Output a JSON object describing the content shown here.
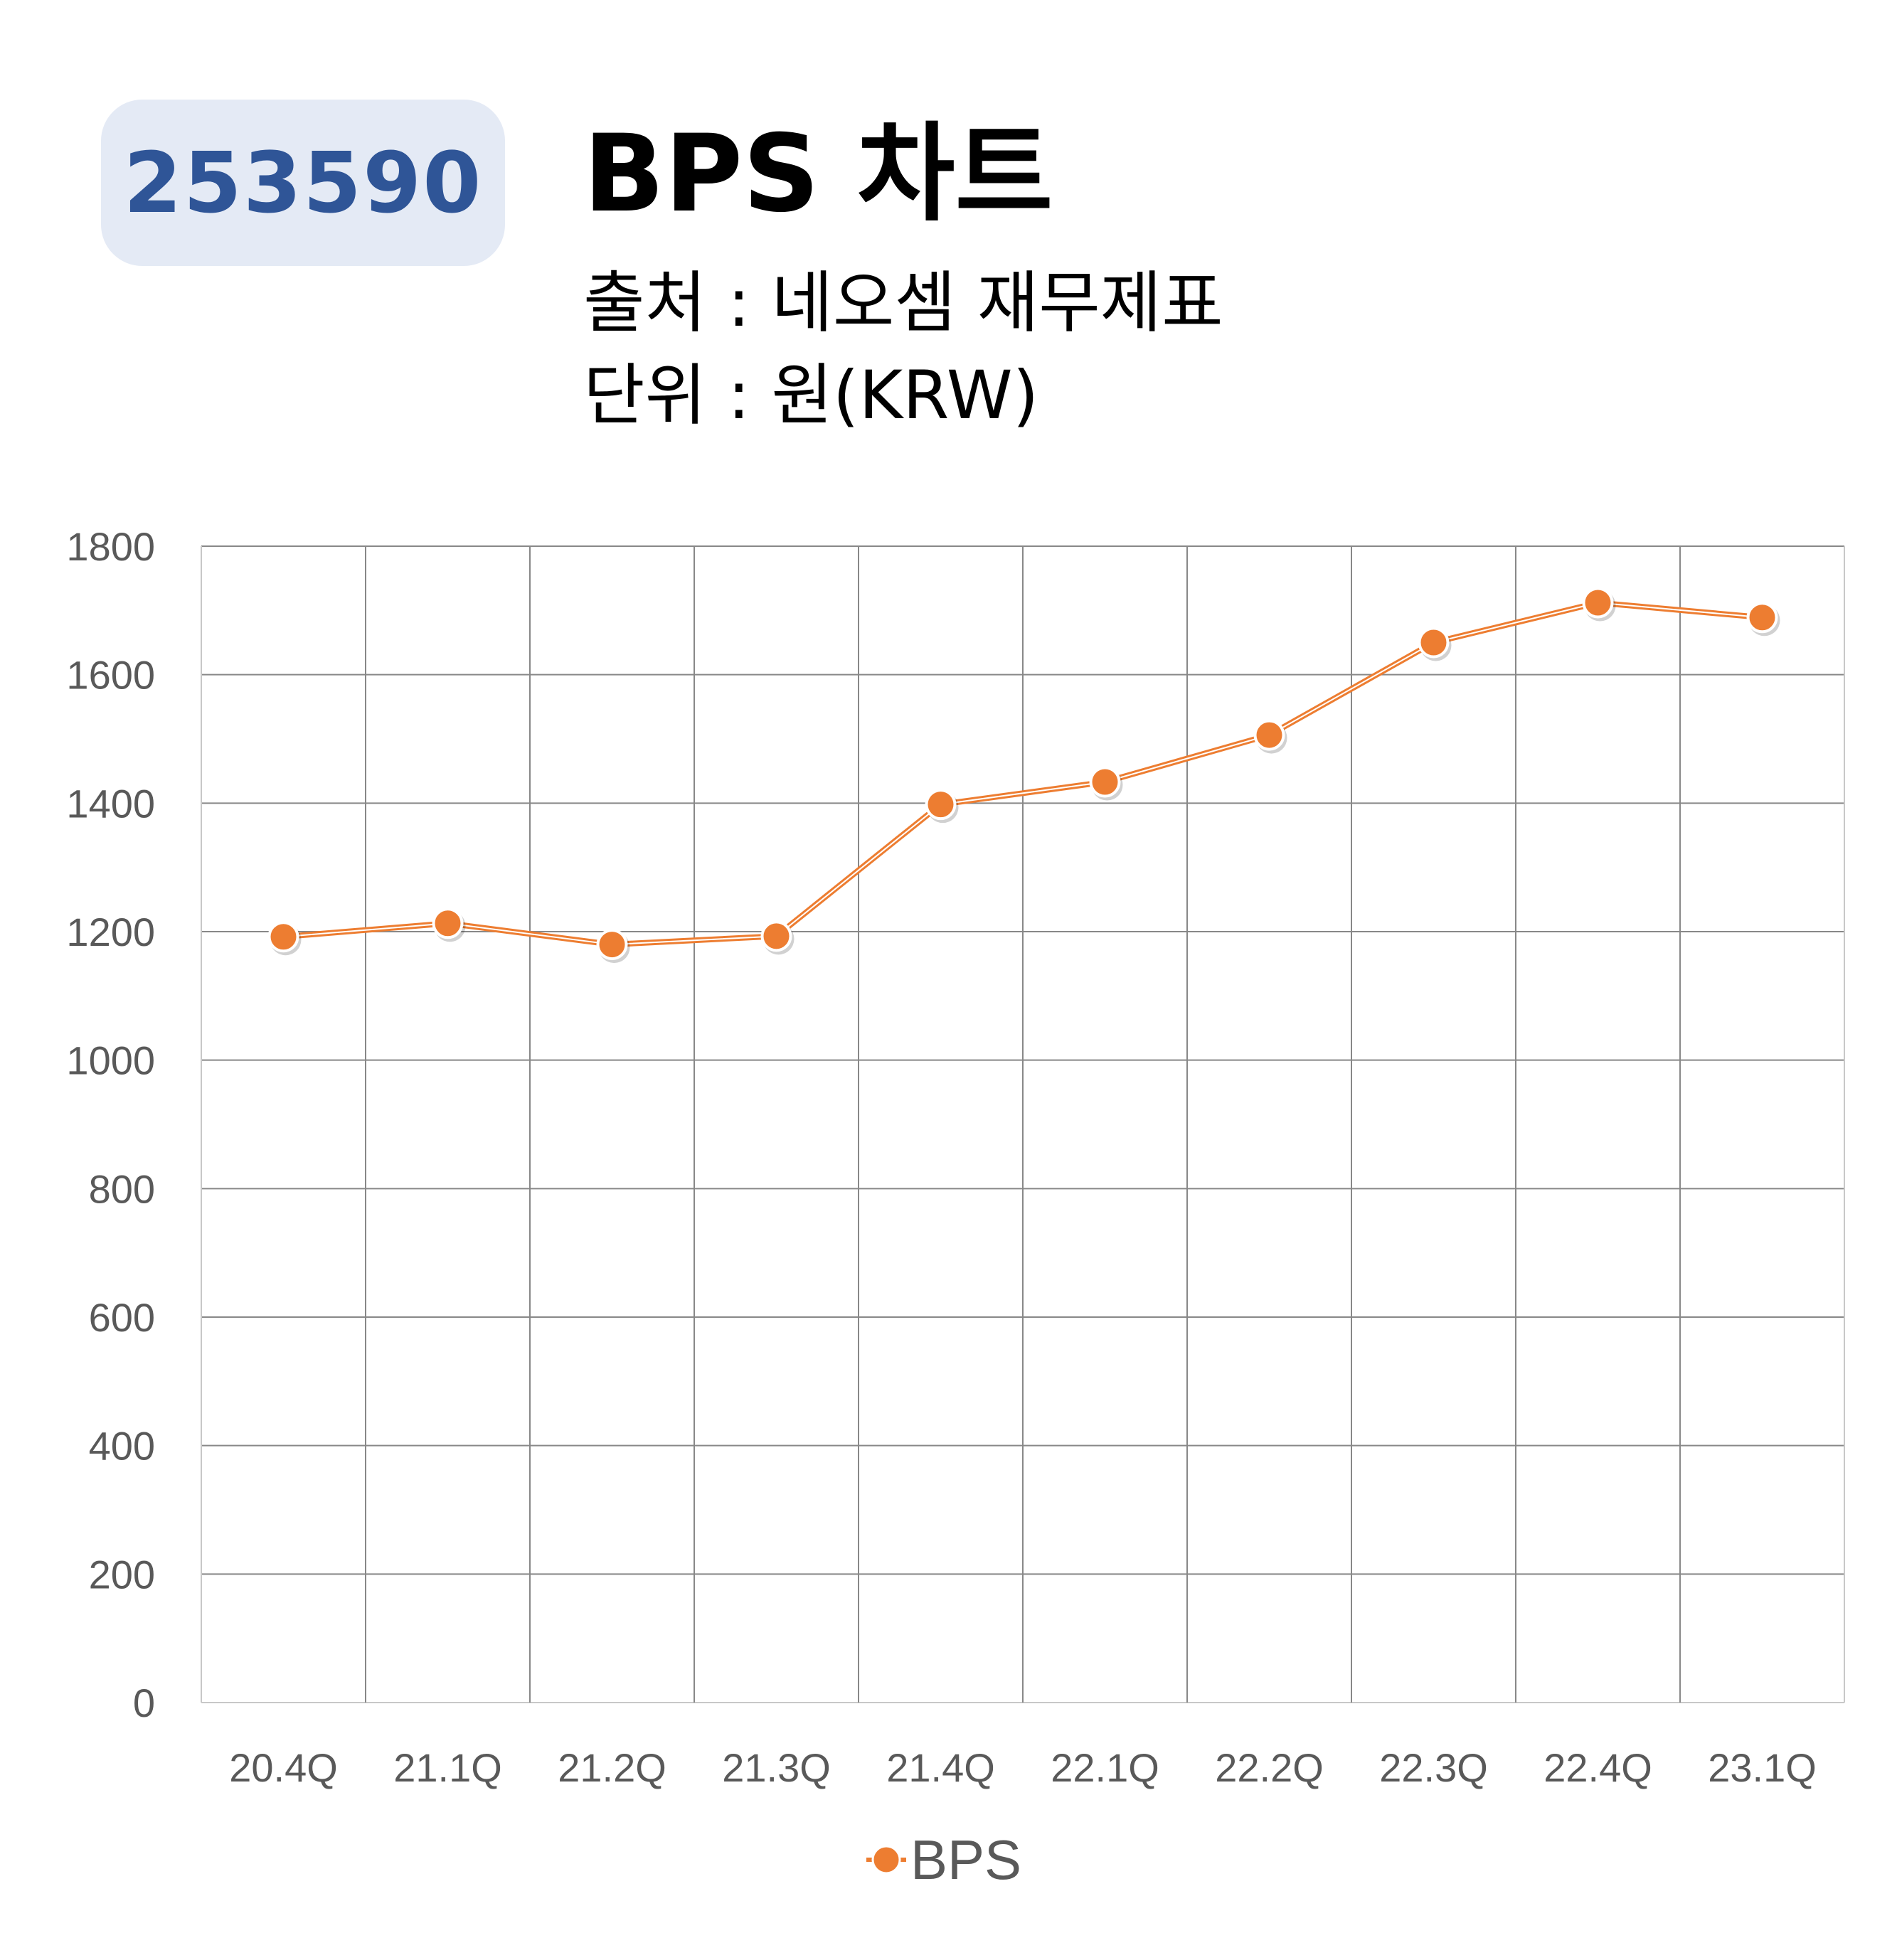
{
  "ticker": "253590",
  "title": "BPS 차트",
  "source_line": "출처 : 네오셈 재무제표",
  "unit_line": "단위 : 원(KRW)",
  "colors": {
    "line": "#ed7d31",
    "badge_bg": "#e4eaf5",
    "badge_text": "#2f5597",
    "grid": "#888888"
  },
  "chart_data": {
    "type": "line",
    "categories": [
      "20.4Q",
      "21.1Q",
      "21.2Q",
      "21.3Q",
      "21.4Q",
      "22.1Q",
      "22.2Q",
      "22.3Q",
      "22.4Q",
      "23.1Q"
    ],
    "series": [
      {
        "name": "BPS",
        "values": [
          1192,
          1213,
          1180,
          1193,
          1398,
          1433,
          1506,
          1650,
          1712,
          1689
        ]
      }
    ],
    "ylim": [
      0,
      1800
    ],
    "yticks": [
      0,
      200,
      400,
      600,
      800,
      1000,
      1200,
      1400,
      1600,
      1800
    ],
    "grid": true,
    "legend": "bottom-center"
  }
}
